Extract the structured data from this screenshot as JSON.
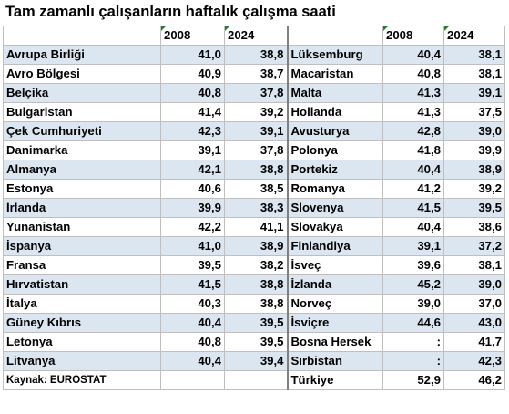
{
  "title": "Tam zamanlı çalışanların haftalık çalışma saati",
  "headers": {
    "y1": "2008",
    "y2": "2024"
  },
  "source": "Kaynak: EUROSTAT",
  "left": [
    {
      "country": "Avrupa Birliği",
      "v2008": "41,0",
      "v2024": "38,8"
    },
    {
      "country": "Avro Bölgesi",
      "v2008": "40,9",
      "v2024": "38,7"
    },
    {
      "country": "Belçika",
      "v2008": "40,8",
      "v2024": "37,8"
    },
    {
      "country": "Bulgaristan",
      "v2008": "41,4",
      "v2024": "39,2"
    },
    {
      "country": "Çek Cumhuriyeti",
      "v2008": "42,3",
      "v2024": "39,1"
    },
    {
      "country": "Danimarka",
      "v2008": "39,1",
      "v2024": "37,8"
    },
    {
      "country": "Almanya",
      "v2008": "42,1",
      "v2024": "38,8"
    },
    {
      "country": "Estonya",
      "v2008": "40,6",
      "v2024": "38,5"
    },
    {
      "country": "İrlanda",
      "v2008": "39,9",
      "v2024": "38,3"
    },
    {
      "country": "Yunanistan",
      "v2008": "42,2",
      "v2024": "41,1"
    },
    {
      "country": "İspanya",
      "v2008": "41,0",
      "v2024": "38,9"
    },
    {
      "country": "Fransa",
      "v2008": "39,5",
      "v2024": "38,2"
    },
    {
      "country": "Hırvatistan",
      "v2008": "41,5",
      "v2024": "38,8"
    },
    {
      "country": "İtalya",
      "v2008": "40,3",
      "v2024": "38,8"
    },
    {
      "country": "Güney Kıbrıs",
      "v2008": "40,4",
      "v2024": "39,5"
    },
    {
      "country": "Letonya",
      "v2008": "40,8",
      "v2024": "39,5"
    },
    {
      "country": "Litvanya",
      "v2008": "40,4",
      "v2024": "39,4"
    }
  ],
  "right": [
    {
      "country": "Lüksemburg",
      "v2008": "40,4",
      "v2024": "38,1"
    },
    {
      "country": "Macaristan",
      "v2008": "40,8",
      "v2024": "38,1"
    },
    {
      "country": "Malta",
      "v2008": "41,3",
      "v2024": "39,1"
    },
    {
      "country": "Hollanda",
      "v2008": "41,3",
      "v2024": "37,5"
    },
    {
      "country": "Avusturya",
      "v2008": "42,8",
      "v2024": "39,0"
    },
    {
      "country": "Polonya",
      "v2008": "41,8",
      "v2024": "39,9"
    },
    {
      "country": "Portekiz",
      "v2008": "40,4",
      "v2024": "38,9"
    },
    {
      "country": "Romanya",
      "v2008": "41,2",
      "v2024": "39,2"
    },
    {
      "country": "Slovenya",
      "v2008": "41,5",
      "v2024": "39,5"
    },
    {
      "country": "Slovakya",
      "v2008": "40,4",
      "v2024": "38,6"
    },
    {
      "country": "Finlandiya",
      "v2008": "39,1",
      "v2024": "37,2"
    },
    {
      "country": "İsveç",
      "v2008": "39,6",
      "v2024": "38,1"
    },
    {
      "country": "İzlanda",
      "v2008": "45,2",
      "v2024": "39,0"
    },
    {
      "country": "Norveç",
      "v2008": "39,0",
      "v2024": "37,0"
    },
    {
      "country": "İsviçre",
      "v2008": "44,6",
      "v2024": "43,0"
    },
    {
      "country": "Bosna Hersek",
      "v2008": ":",
      "v2024": "41,7"
    },
    {
      "country": "Sırbistan",
      "v2008": ":",
      "v2024": "42,3"
    },
    {
      "country": "Türkiye",
      "v2008": "52,9",
      "v2024": "46,2"
    }
  ],
  "colors": {
    "shade": "#dce6f1",
    "border": "#bfbfbf"
  }
}
